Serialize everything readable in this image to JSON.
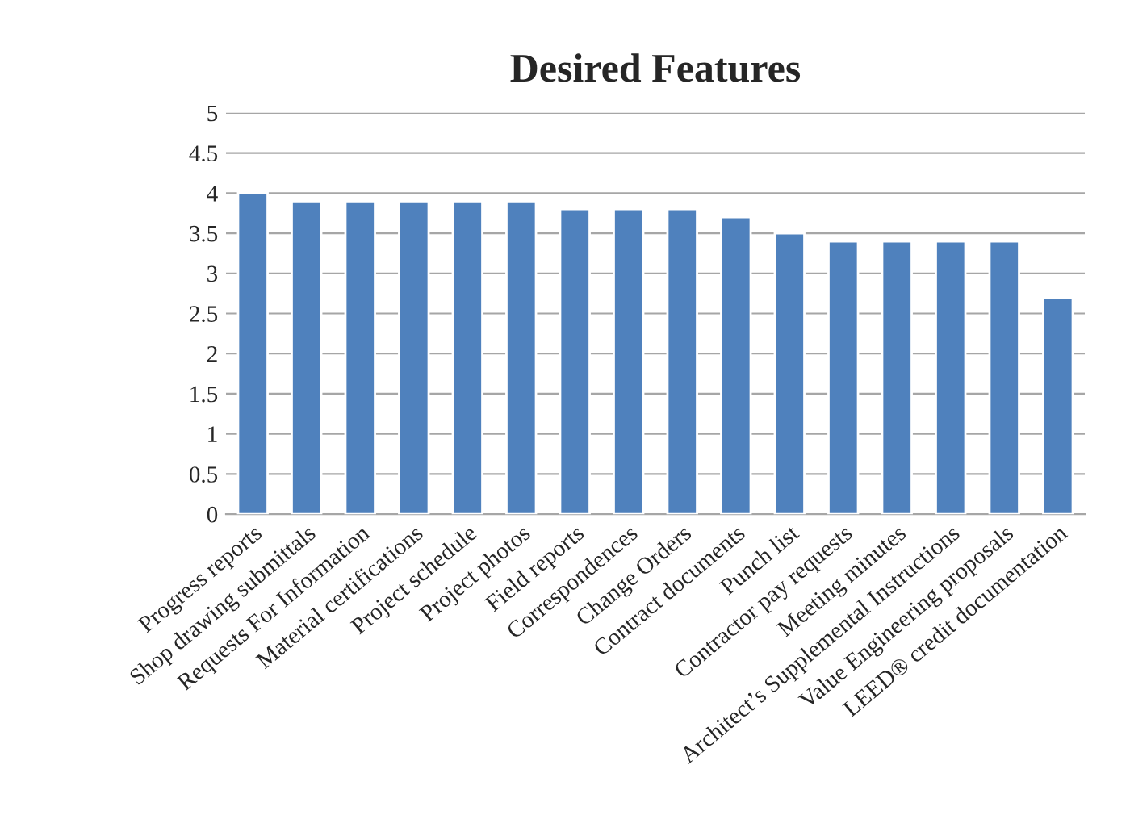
{
  "chart_data": {
    "type": "bar",
    "title": "Desired Features",
    "categories": [
      "Progress reports",
      "Shop drawing submittals",
      "Requests For Information",
      "Material certifications",
      "Project schedule",
      "Project photos",
      "Field reports",
      "Correspondences",
      "Change Orders",
      "Contract documents",
      "Punch list",
      "Contractor pay requests",
      "Meeting minutes",
      "Architect’s Supplemental Instructions",
      "Value Engineering proposals",
      "LEED® credit documentation"
    ],
    "values": [
      4.0,
      3.9,
      3.9,
      3.9,
      3.9,
      3.9,
      3.8,
      3.8,
      3.8,
      3.7,
      3.5,
      3.4,
      3.4,
      3.4,
      3.4,
      2.7
    ],
    "color": "#4f81bd",
    "ylim": [
      0,
      5
    ],
    "yticks": [
      0,
      0.5,
      1,
      1.5,
      2,
      2.5,
      3,
      3.5,
      4,
      4.5,
      5
    ],
    "grid": "y"
  }
}
